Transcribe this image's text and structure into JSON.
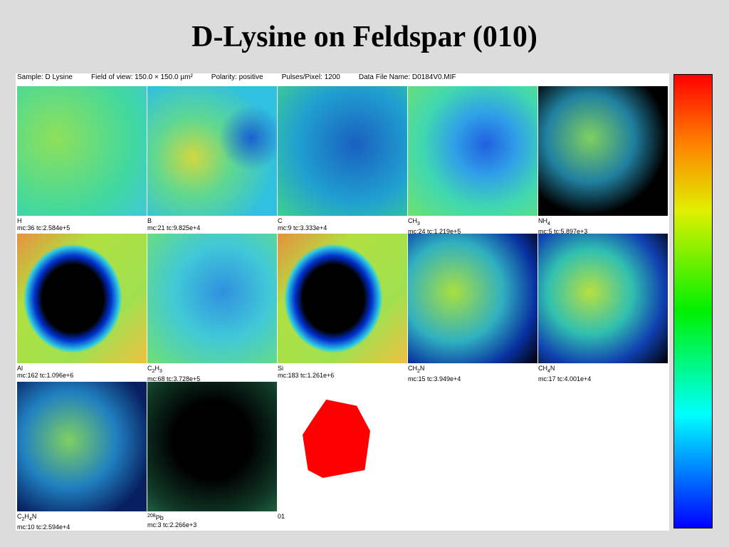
{
  "title": "D-Lysine on Feldspar (010)",
  "header": [
    "Sample: D Lysine",
    "Field of view: 150.0 × 150.0 µm²",
    "Polarity: positive",
    "Pulses/Pixel: 1200",
    "Data File Name: D0184V0.MIF"
  ],
  "panels": [
    {
      "label": [
        {
          "text": "H"
        }
      ],
      "stats": "mc:36 tc:2.584e+5"
    },
    {
      "label": [
        {
          "text": "B"
        }
      ],
      "stats": "mc:21 tc:9.825e+4"
    },
    {
      "label": [
        {
          "text": "C"
        }
      ],
      "stats": "mc:9 tc:3.333e+4"
    },
    {
      "label": [
        {
          "text": "CH"
        },
        {
          "sub": "3"
        }
      ],
      "stats": "mc:24 tc:1.219e+5"
    },
    {
      "label": [
        {
          "text": "NH"
        },
        {
          "sub": "4"
        }
      ],
      "stats": "mc:5 tc:5.897e+3"
    },
    {
      "label": [
        {
          "text": "Al"
        }
      ],
      "stats": "mc:162 tc:1.096e+6"
    },
    {
      "label": [
        {
          "text": "C"
        },
        {
          "sub": "2"
        },
        {
          "text": "H"
        },
        {
          "sub": "3"
        }
      ],
      "stats": "mc:68 tc:3.728e+5"
    },
    {
      "label": [
        {
          "text": "Si"
        }
      ],
      "stats": "mc:183 tc:1.261e+6"
    },
    {
      "label": [
        {
          "text": "CH"
        },
        {
          "sub": "2"
        },
        {
          "text": "N"
        }
      ],
      "stats": "mc:15 tc:3.949e+4"
    },
    {
      "label": [
        {
          "text": "CH"
        },
        {
          "sub": "4"
        },
        {
          "text": "N"
        }
      ],
      "stats": "mc:17 tc:4.001e+4"
    },
    {
      "label": [
        {
          "text": "C"
        },
        {
          "sub": "2"
        },
        {
          "text": "H"
        },
        {
          "sub": "4"
        },
        {
          "text": "N"
        }
      ],
      "stats": "mc:10 tc:2.594e+4"
    },
    {
      "label": [
        {
          "sup": "208"
        },
        {
          "text": "Pb"
        }
      ],
      "stats": "mc:3 tc:2.266e+3"
    },
    {
      "label": [
        {
          "text": "01"
        }
      ]
    }
  ]
}
